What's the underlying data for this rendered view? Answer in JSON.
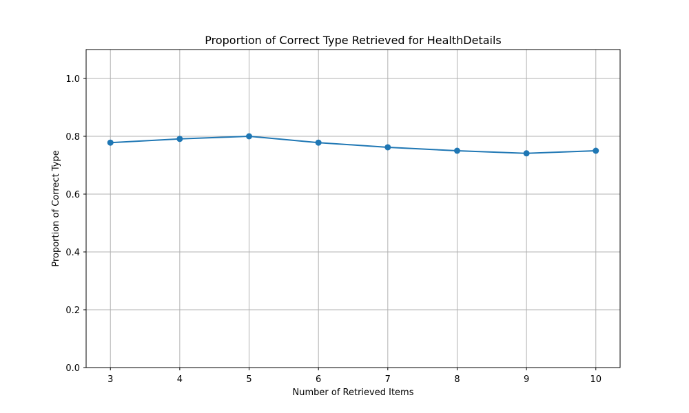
{
  "chart_data": {
    "type": "line",
    "title": "Proportion of Correct Type Retrieved for HealthDetails",
    "xlabel": "Number of Retrieved Items",
    "ylabel": "Proportion of Correct Type",
    "x": [
      3,
      4,
      5,
      6,
      7,
      8,
      9,
      10
    ],
    "series": [
      {
        "values": [
          0.778,
          0.791,
          0.8,
          0.778,
          0.762,
          0.75,
          0.741,
          0.75
        ],
        "color": "#1f77b4",
        "marker": "circle"
      }
    ],
    "x_ticks": [
      "3",
      "4",
      "5",
      "6",
      "7",
      "8",
      "9",
      "10"
    ],
    "y_ticks": [
      "0.0",
      "0.2",
      "0.4",
      "0.6",
      "0.8",
      "1.0"
    ],
    "xlim": [
      2.65,
      10.35
    ],
    "ylim": [
      0,
      1.1
    ],
    "grid": true,
    "legend": false
  }
}
